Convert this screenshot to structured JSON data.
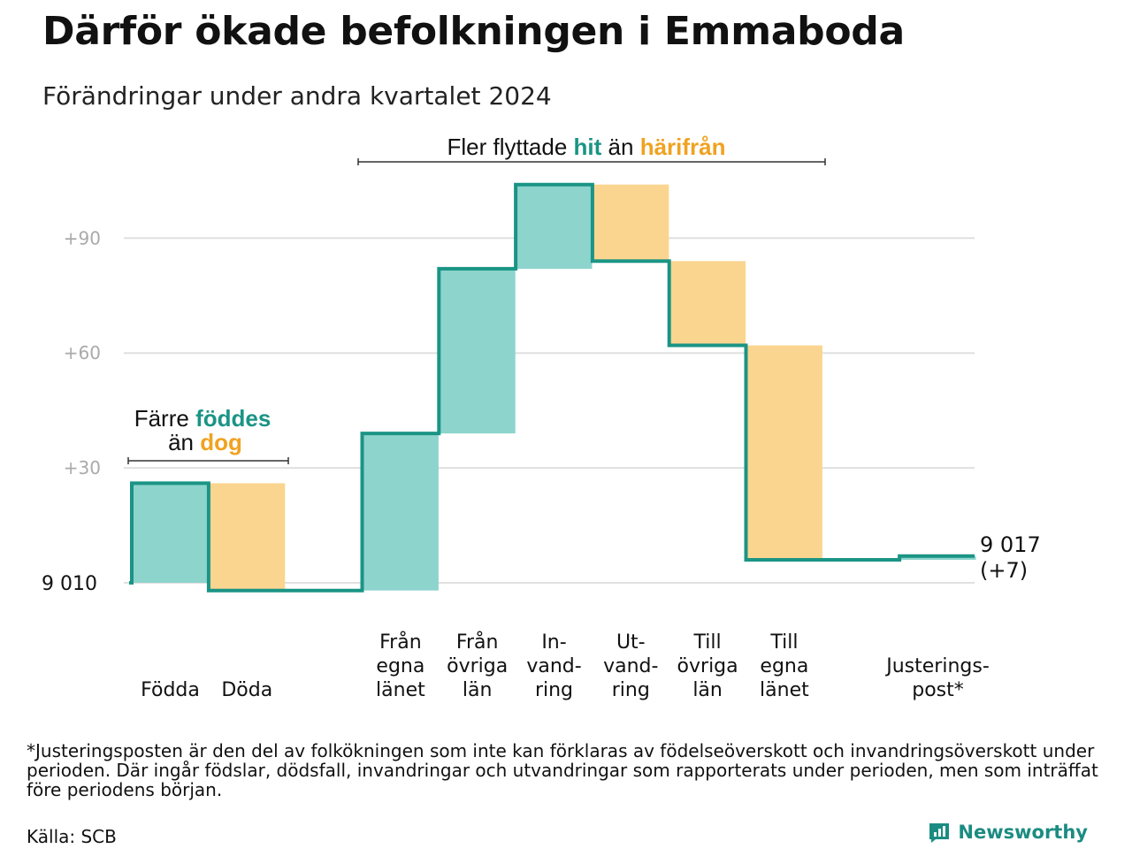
{
  "title": "Därför ökade befolkningen i Emmaboda",
  "subtitle": "Förändringar under andra kvartalet 2024",
  "footnote": "*Justeringsposten är den del av folkökningen som inte kan förklaras av födelseöverskott och invandringsöverskott under perioden. Där ingår födslar, dödsfall, invandringar och utvandringar som rapporterats under perioden, men som inträffat före periodens början.",
  "source": "Källa: SCB",
  "brand": "Newsworthy",
  "colors": {
    "increase": "#8dd4cc",
    "decrease": "#fad58f",
    "step_line": "#1a9485",
    "hit_text": "#1a9485",
    "harifran_text": "#f0a220",
    "grid": "#e0e0e0",
    "ticks": "#aaaaaa",
    "brand": "#1b8c82"
  },
  "annotations": {
    "births": {
      "line1": "Färre",
      "line1_strong": "föddes",
      "line2": "än",
      "line2_strong": "dog"
    },
    "migration": {
      "part1": "Fler flyttade",
      "hit": "hit",
      "part2": "än",
      "harifran": "härifrån"
    }
  },
  "chart_data": {
    "type": "waterfall",
    "base_label": "9 010",
    "end_label_value": "9 017",
    "end_label_change": "(+7)",
    "y_ticks": [
      {
        "value": 30,
        "label": "+30"
      },
      {
        "value": 60,
        "label": "+60"
      },
      {
        "value": 90,
        "label": "+90"
      }
    ],
    "ylim": [
      -5,
      103
    ],
    "grid": true,
    "steps": [
      {
        "label": [
          "Födda"
        ],
        "delta": 26,
        "kind": "increase"
      },
      {
        "label": [
          "Döda"
        ],
        "delta": -28,
        "kind": "decrease"
      },
      {
        "label": [],
        "delta": 0,
        "kind": "spacer"
      },
      {
        "label": [
          "Från",
          "egna",
          "länet"
        ],
        "delta": 41,
        "kind": "increase"
      },
      {
        "label": [
          "Från",
          "övriga",
          "län"
        ],
        "delta": 43,
        "kind": "increase"
      },
      {
        "label": [
          "In-",
          "vand-",
          "ring"
        ],
        "delta": 22,
        "kind": "increase"
      },
      {
        "label": [
          "Ut-",
          "vand-",
          "ring"
        ],
        "delta": -20,
        "kind": "decrease"
      },
      {
        "label": [
          "Till",
          "övriga",
          "län"
        ],
        "delta": -22,
        "kind": "decrease"
      },
      {
        "label": [
          "Till",
          "egna",
          "länet"
        ],
        "delta": -56,
        "kind": "decrease"
      },
      {
        "label": [],
        "delta": 0,
        "kind": "spacer"
      },
      {
        "label": [
          "Justerings-",
          "post*"
        ],
        "delta": 1,
        "kind": "increase"
      }
    ]
  }
}
